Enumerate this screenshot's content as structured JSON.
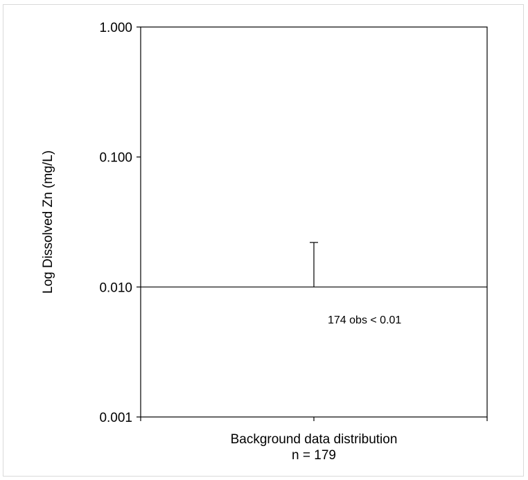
{
  "chart_data": {
    "type": "box",
    "title": "",
    "ylabel": "Log Dissolved Zn (mg/L)",
    "xlabel": "",
    "y_scale": "log",
    "ylim": [
      0.001,
      1.0
    ],
    "y_ticks": [
      {
        "value": 1.0,
        "label": "1.000"
      },
      {
        "value": 0.1,
        "label": "0.100"
      },
      {
        "value": 0.01,
        "label": "0.010"
      },
      {
        "value": 0.001,
        "label": "0.001"
      }
    ],
    "categories": [
      {
        "label": "Background data distribution",
        "sublabel": "n = 179",
        "box_value": 0.01,
        "whisker_upper": 0.022
      }
    ],
    "annotation": "174 obs < 0.01",
    "grid": false,
    "legend": "none",
    "colors": {
      "axis": "#000000",
      "frame": "#d9d9d9"
    }
  }
}
